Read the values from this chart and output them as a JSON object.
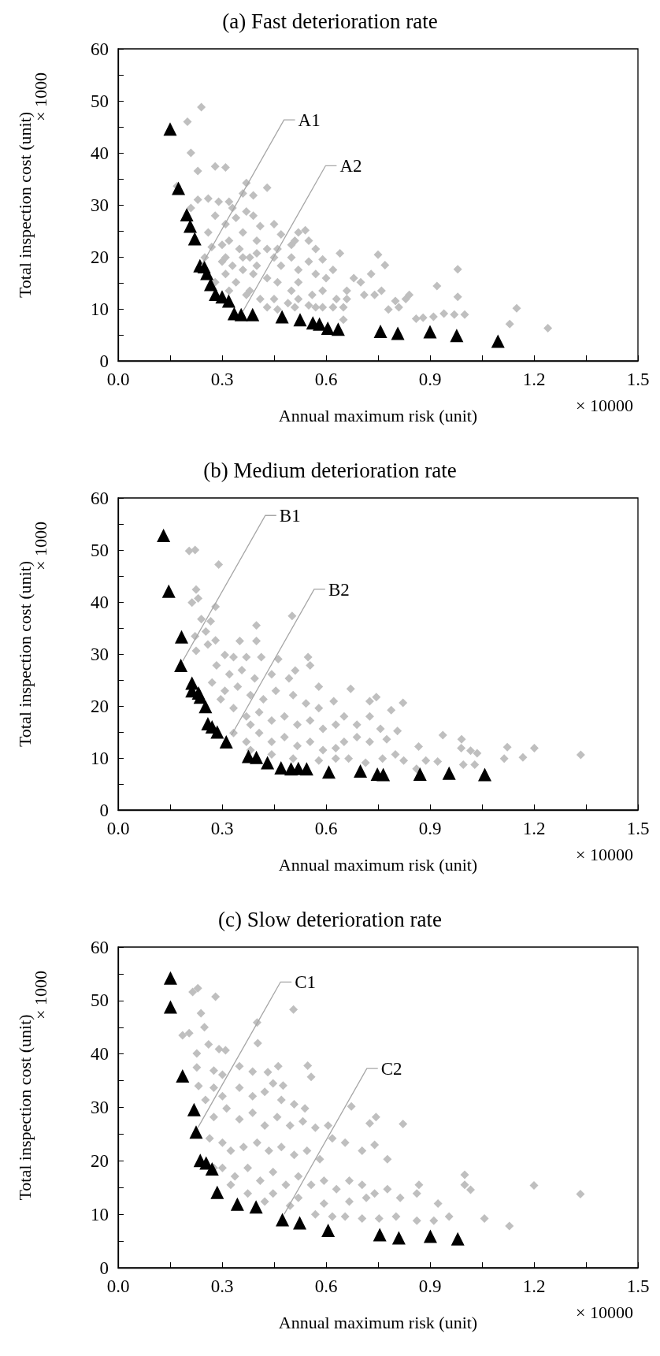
{
  "chart_data": [
    {
      "type": "scatter",
      "title": "(a) Fast deterioration rate",
      "xlabel": "Annual maximum risk (unit)",
      "ylabel": "Total inspection cost (unit)",
      "annotations": [
        "× 1000",
        "× 10000",
        {
          "text": "A1",
          "x": 0.24,
          "y": 18.3
        },
        {
          "text": "A2",
          "x": 0.36,
          "y": 9.5
        }
      ],
      "xlim": [
        0,
        1.5
      ],
      "ylim": [
        0,
        60
      ],
      "xticks": [
        {
          "value": 0,
          "label": "0.0"
        },
        {
          "value": 0.15,
          "label": null
        },
        0.3,
        {
          "value": 0.45,
          "label": null
        },
        0.6,
        {
          "value": 0.75,
          "label": null
        },
        0.9,
        {
          "value": 1.05,
          "label": null
        },
        1.2,
        {
          "value": 1.35,
          "label": null
        },
        1.5
      ],
      "yticks": [
        0,
        {
          "value": 5,
          "label": null
        },
        10,
        {
          "value": 15,
          "label": null
        },
        20,
        {
          "value": 25,
          "label": null
        },
        30,
        {
          "value": 35,
          "label": null
        },
        40,
        {
          "value": 45,
          "label": null
        },
        50,
        {
          "value": 55,
          "label": null
        },
        60
      ],
      "series": [
        {
          "color": "#bfbfbf",
          "marker": "diamond",
          "x": [
            0.2,
            0.24,
            0.21,
            0.17,
            0.23,
            0.28,
            0.31,
            0.43,
            0.36,
            0.23,
            0.26,
            0.29,
            0.33,
            0.39,
            0.54,
            0.64,
            0.75,
            0.77,
            0.98,
            0.98,
            0.92,
            1.15,
            1.24,
            1.13,
            1.0,
            0.97,
            0.94,
            0.91,
            0.88,
            0.86,
            0.83,
            0.84,
            0.8,
            0.78,
            0.74,
            0.73,
            0.7,
            0.66,
            0.63,
            0.6,
            0.59,
            0.57,
            0.52,
            0.51,
            0.47,
            0.45,
            0.41,
            0.39,
            0.37,
            0.34,
            0.31,
            0.28,
            0.26,
            0.27,
            0.3,
            0.32,
            0.35,
            0.38,
            0.4,
            0.43,
            0.45,
            0.47,
            0.5,
            0.52,
            0.55,
            0.57,
            0.52,
            0.5,
            0.46,
            0.43,
            0.39,
            0.36,
            0.33,
            0.31,
            0.34,
            0.38,
            0.41,
            0.45,
            0.49,
            0.52,
            0.56,
            0.59,
            0.62,
            0.65,
            0.66,
            0.59,
            0.57,
            0.55,
            0.51,
            0.46,
            0.43,
            0.37,
            0.32,
            0.28,
            0.25,
            0.3,
            0.31,
            0.36,
            0.4,
            0.46,
            0.5,
            0.55,
            0.62,
            0.68,
            0.71,
            0.76,
            0.81,
            0.65,
            0.36,
            0.4,
            0.32,
            0.37,
            0.21
          ],
          "values": [
            46.0,
            48.8,
            40.0,
            33.6,
            36.5,
            37.4,
            37.2,
            33.3,
            32.2,
            31.0,
            31.2,
            30.6,
            29.4,
            31.8,
            25.1,
            20.7,
            20.4,
            18.4,
            17.6,
            12.3,
            14.4,
            10.1,
            6.3,
            7.1,
            8.9,
            8.9,
            9.1,
            8.5,
            8.3,
            8.1,
            11.9,
            12.7,
            11.5,
            9.9,
            12.7,
            16.7,
            15.1,
            13.5,
            11.9,
            15.9,
            19.5,
            21.5,
            24.7,
            23.1,
            24.3,
            26.3,
            25.9,
            27.9,
            28.7,
            27.5,
            26.3,
            27.9,
            24.7,
            21.9,
            22.3,
            23.1,
            21.5,
            19.9,
            18.3,
            21.5,
            19.9,
            18.3,
            19.9,
            17.5,
            19.1,
            16.7,
            15.1,
            13.5,
            15.1,
            15.9,
            16.7,
            17.5,
            18.3,
            16.7,
            15.1,
            13.5,
            11.9,
            11.9,
            11.1,
            11.9,
            12.7,
            13.5,
            10.3,
            10.3,
            11.9,
            10.3,
            10.3,
            10.7,
            10.3,
            9.9,
            10.3,
            12.7,
            13.5,
            15.1,
            19.9,
            19.1,
            19.9,
            19.9,
            20.7,
            21.5,
            22.3,
            23.1,
            17.5,
            15.9,
            12.7,
            13.5,
            10.3,
            7.9,
            24.7,
            23.1,
            30.6,
            34.2,
            29.4
          ]
        },
        {
          "color": "#000000",
          "marker": "triangle",
          "x": [
            0.15,
            0.174,
            0.198,
            0.208,
            0.221,
            0.236,
            0.248,
            0.256,
            0.267,
            0.281,
            0.3,
            0.319,
            0.335,
            0.355,
            0.388,
            0.473,
            0.525,
            0.562,
            0.581,
            0.605,
            0.635,
            0.757,
            0.807,
            0.814,
            0.9,
            0.977,
            1.096
          ],
          "values": [
            44.6,
            33.2,
            28.1,
            25.9,
            23.5,
            18.3,
            18.1,
            16.8,
            14.7,
            12.8,
            12.3,
            11.5,
            9.1,
            8.9,
            8.9,
            8.5,
            7.9,
            7.3,
            7.1,
            6.3,
            6.1,
            5.7,
            5.3,
            null,
            5.6,
            4.9,
            3.8
          ]
        }
      ]
    },
    {
      "type": "scatter",
      "title": "(b) Medium deterioration rate",
      "xlabel": "Annual maximum risk (unit)",
      "ylabel": "Total inspection cost (unit)",
      "annotations": [
        "× 1000",
        "× 10000",
        {
          "text": "B1",
          "x": 0.186,
          "y": 28.6
        },
        {
          "text": "B2",
          "x": 0.327,
          "y": 14.4
        }
      ],
      "xlim": [
        0,
        1.5
      ],
      "ylim": [
        0,
        60
      ],
      "xticks": [
        {
          "value": 0,
          "label": "0.0"
        },
        {
          "value": 0.15,
          "label": null
        },
        0.3,
        {
          "value": 0.45,
          "label": null
        },
        0.6,
        {
          "value": 0.75,
          "label": null
        },
        0.9,
        {
          "value": 1.05,
          "label": null
        },
        1.2,
        {
          "value": 1.35,
          "label": null
        },
        1.5
      ],
      "yticks": [
        0,
        {
          "value": 5,
          "label": null
        },
        10,
        {
          "value": 15,
          "label": null
        },
        20,
        {
          "value": 25,
          "label": null
        },
        30,
        {
          "value": 35,
          "label": null
        },
        40,
        {
          "value": 45,
          "label": null
        },
        50,
        {
          "value": 55,
          "label": null
        },
        60
      ],
      "series": [
        {
          "color": "#bfbfbf",
          "marker": "diamond",
          "x": [
            0.205,
            0.222,
            0.29,
            0.225,
            0.213,
            0.231,
            0.281,
            0.502,
            0.399,
            0.351,
            0.399,
            0.24,
            0.267,
            0.222,
            0.253,
            0.281,
            0.259,
            0.225,
            0.308,
            0.333,
            0.37,
            0.413,
            0.462,
            0.511,
            0.548,
            0.554,
            0.284,
            0.321,
            0.357,
            0.394,
            0.443,
            0.493,
            0.579,
            0.671,
            0.726,
            0.745,
            0.788,
            0.822,
            0.271,
            0.308,
            0.345,
            0.382,
            0.419,
            0.455,
            0.505,
            0.542,
            0.579,
            0.622,
            0.652,
            0.689,
            0.726,
            0.757,
            0.806,
            0.775,
            0.726,
            0.689,
            0.652,
            0.628,
            0.665,
            0.714,
            0.763,
            0.8,
            0.824,
            0.861,
            0.867,
            0.888,
            0.922,
            0.937,
            0.991,
            0.99,
            0.996,
            1.017,
            1.036,
            1.029,
            1.114,
            1.123,
            1.168,
            1.201,
            1.335,
            0.333,
            0.37,
            0.407,
            0.443,
            0.48,
            0.517,
            0.554,
            0.591,
            0.628,
            0.333,
            0.37,
            0.407,
            0.443,
            0.48,
            0.517,
            0.554,
            0.591,
            0.505,
            0.579,
            0.443,
            0.628,
            0.382,
            0.296,
            0.382
          ],
          "values": [
            49.8,
            50.0,
            47.2,
            42.4,
            39.9,
            40.7,
            39.1,
            37.3,
            35.5,
            32.5,
            32.5,
            36.7,
            36.3,
            33.4,
            34.3,
            32.6,
            31.8,
            30.6,
            29.8,
            29.4,
            29.4,
            29.4,
            29.0,
            26.8,
            29.4,
            27.8,
            27.8,
            26.1,
            26.9,
            25.3,
            26.1,
            25.3,
            23.7,
            23.3,
            20.9,
            21.7,
            19.2,
            20.6,
            24.5,
            22.9,
            23.7,
            22.1,
            21.3,
            22.9,
            22.1,
            20.5,
            19.6,
            20.9,
            18.0,
            16.4,
            18.0,
            15.6,
            15.2,
            13.6,
            13.1,
            14.0,
            13.1,
            11.9,
            9.9,
            9.1,
            9.9,
            10.7,
            9.5,
            7.9,
            12.2,
            9.5,
            9.3,
            14.4,
            13.6,
            11.9,
            8.7,
            11.4,
            10.9,
            8.7,
            9.9,
            12.1,
            10.1,
            11.9,
            10.6,
            19.6,
            18.0,
            18.8,
            17.2,
            18.0,
            16.4,
            17.2,
            15.6,
            16.4,
            14.8,
            13.1,
            14.8,
            13.1,
            14.0,
            12.3,
            13.1,
            11.5,
            9.9,
            9.5,
            10.7,
            9.9,
            16.4,
            21.3,
            11.5
          ]
        },
        {
          "color": "#000000",
          "marker": "triangle",
          "x": [
            0.131,
            0.146,
            0.183,
            0.181,
            0.213,
            0.213,
            0.232,
            0.237,
            0.252,
            0.259,
            0.271,
            0.286,
            0.312,
            0.376,
            0.399,
            0.431,
            0.47,
            0.499,
            0.52,
            0.544,
            0.608,
            0.699,
            0.748,
            0.765,
            0.871,
            0.955,
            1.058
          ],
          "values": [
            52.8,
            42.1,
            33.3,
            27.8,
            24.4,
            22.9,
            22.5,
            21.7,
            19.9,
            16.6,
            16.0,
            15.0,
            13.1,
            10.3,
            10.1,
            9.1,
            8.1,
            7.9,
            8.0,
            7.9,
            7.3,
            7.5,
            6.9,
            6.8,
            6.9,
            7.1,
            6.8
          ]
        }
      ]
    },
    {
      "type": "scatter",
      "title": "(c) Slow deterioration rate",
      "xlabel": "Annual maximum risk (unit)",
      "ylabel": "Total inspection cost (unit)",
      "annotations": [
        "× 1000",
        "× 10000",
        {
          "text": "C1",
          "x": 0.23,
          "y": 26.2
        },
        {
          "text": "C2",
          "x": 0.479,
          "y": 10.0
        }
      ],
      "xlim": [
        0,
        1.5
      ],
      "ylim": [
        0,
        60
      ],
      "xticks": [
        {
          "value": 0,
          "label": "0.0"
        },
        {
          "value": 0.15,
          "label": null
        },
        0.3,
        {
          "value": 0.45,
          "label": null
        },
        0.6,
        {
          "value": 0.75,
          "label": null
        },
        0.9,
        {
          "value": 1.05,
          "label": null
        },
        1.2,
        {
          "value": 1.35,
          "label": null
        },
        1.5
      ],
      "yticks": [
        0,
        {
          "value": 5,
          "label": null
        },
        10,
        {
          "value": 15,
          "label": null
        },
        20,
        {
          "value": 25,
          "label": null
        },
        30,
        {
          "value": 35,
          "label": null
        },
        40,
        {
          "value": 45,
          "label": null
        },
        50,
        {
          "value": 55,
          "label": null
        },
        60
      ],
      "series": [
        {
          "color": "#bfbfbf",
          "marker": "diamond",
          "x": [
            0.215,
            0.23,
            0.281,
            0.239,
            0.249,
            0.205,
            0.186,
            0.261,
            0.227,
            0.291,
            0.31,
            0.506,
            0.401,
            0.403,
            0.227,
            0.276,
            0.301,
            0.35,
            0.388,
            0.432,
            0.462,
            0.547,
            0.557,
            0.476,
            0.447,
            0.232,
            0.252,
            0.276,
            0.301,
            0.35,
            0.388,
            0.423,
            0.471,
            0.508,
            0.539,
            0.673,
            0.726,
            0.744,
            0.822,
            0.276,
            0.313,
            0.35,
            0.388,
            0.423,
            0.459,
            0.496,
            0.533,
            0.569,
            0.606,
            0.618,
            0.655,
            0.704,
            0.74,
            0.777,
            0.264,
            0.301,
            0.325,
            0.362,
            0.401,
            0.435,
            0.471,
            0.508,
            0.545,
            0.582,
            0.301,
            0.337,
            0.374,
            0.41,
            0.447,
            0.484,
            0.52,
            0.557,
            0.594,
            0.63,
            0.667,
            0.704,
            0.74,
            0.777,
            0.814,
            0.868,
            0.862,
            0.923,
            0.955,
            0.862,
            0.911,
            1.0,
            1.0,
            1.017,
            1.057,
            1.129,
            1.2,
            1.334,
            0.374,
            0.423,
            0.496,
            0.569,
            0.618,
            0.655,
            0.704,
            0.753,
            0.802,
            0.447,
            0.52,
            0.594,
            0.667,
            0.716,
            0.325,
            0.276
          ],
          "values": [
            51.6,
            52.3,
            50.7,
            47.6,
            45.0,
            43.9,
            43.5,
            41.8,
            40.1,
            40.9,
            40.7,
            48.3,
            45.9,
            42.0,
            37.5,
            36.9,
            36.1,
            37.7,
            36.7,
            36.6,
            37.7,
            37.8,
            35.7,
            34.1,
            34.5,
            34.0,
            31.4,
            33.7,
            32.1,
            33.7,
            32.1,
            32.9,
            31.4,
            30.6,
            29.8,
            30.2,
            27.0,
            28.2,
            26.9,
            28.2,
            29.8,
            27.8,
            29.0,
            26.6,
            28.2,
            26.6,
            27.4,
            26.2,
            26.6,
            24.2,
            23.4,
            21.9,
            23.0,
            20.3,
            24.2,
            23.4,
            21.9,
            22.6,
            23.4,
            21.9,
            22.6,
            21.1,
            21.9,
            20.3,
            18.7,
            17.1,
            18.7,
            16.3,
            17.9,
            15.5,
            17.1,
            15.5,
            16.3,
            14.7,
            16.3,
            15.5,
            13.9,
            14.7,
            13.1,
            15.5,
            13.9,
            12.0,
            9.6,
            8.8,
            8.8,
            17.4,
            15.5,
            14.6,
            9.2,
            7.8,
            15.4,
            13.8,
            13.9,
            12.4,
            11.6,
            10.0,
            9.6,
            9.6,
            9.2,
            9.2,
            9.6,
            13.9,
            13.1,
            12.0,
            12.4,
            13.1,
            15.5,
            18.7
          ]
        },
        {
          "color": "#000000",
          "marker": "triangle",
          "x": [
            0.151,
            0.151,
            0.186,
            0.219,
            0.225,
            0.237,
            0.254,
            0.271,
            0.286,
            0.344,
            0.398,
            0.474,
            0.524,
            0.606,
            0.755,
            0.81,
            0.816,
            0.901,
            0.98
          ],
          "values": [
            54.2,
            48.8,
            35.9,
            29.6,
            25.4,
            20.1,
            19.6,
            18.5,
            14.1,
            11.9,
            11.4,
            9.0,
            8.4,
            7.0,
            6.2,
            5.6,
            null,
            5.9,
            5.4
          ]
        }
      ]
    }
  ]
}
